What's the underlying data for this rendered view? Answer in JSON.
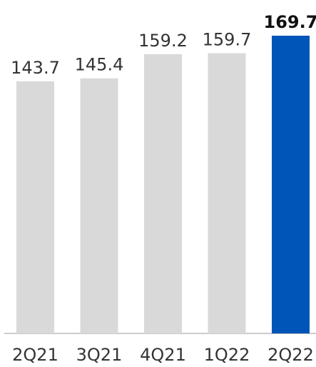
{
  "chart_data": {
    "type": "bar",
    "categories": [
      "2Q21",
      "3Q21",
      "4Q21",
      "1Q22",
      "2Q22"
    ],
    "values": [
      143.7,
      145.4,
      159.2,
      159.7,
      169.7
    ],
    "value_labels": [
      "143.7",
      "145.4",
      "159.2",
      "159.7",
      "169.7"
    ],
    "highlight_index": 4,
    "ylim": [
      0,
      169.7
    ],
    "grid": false,
    "colors": {
      "bar": "#d9d9d9",
      "highlight": "#0055b8",
      "baseline": "#cccccc"
    }
  }
}
